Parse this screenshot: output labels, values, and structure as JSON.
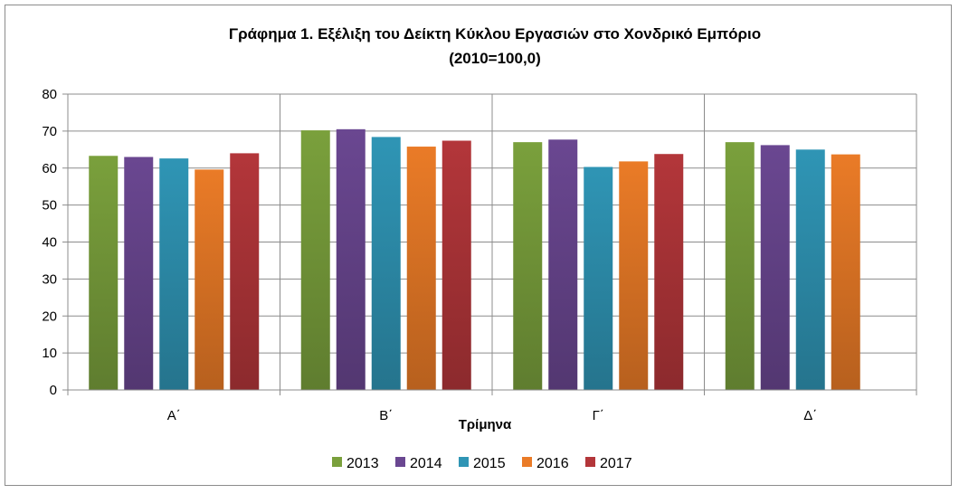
{
  "chart_data": {
    "type": "bar",
    "title": "Γράφημα 1.  Εξέλιξη του Δείκτη Κύκλου Εργασιών στο Χονδρικό Εμπόριο",
    "subtitle": "(2010=100,0)",
    "xlabel": "Τρίμηνα",
    "ylabel": "",
    "ylim": [
      0,
      80
    ],
    "yticks": [
      0,
      10,
      20,
      30,
      40,
      50,
      60,
      70,
      80
    ],
    "grid": true,
    "legend_position": "bottom",
    "categories": [
      "Α΄",
      "Β΄",
      "Γ΄",
      "Δ΄"
    ],
    "series": [
      {
        "name": "2013",
        "color": "#7aa03c",
        "values": [
          63.3,
          70.2,
          67.0,
          67.0
        ]
      },
      {
        "name": "2014",
        "color": "#6a4791",
        "values": [
          63.0,
          70.5,
          67.7,
          66.2
        ]
      },
      {
        "name": "2015",
        "color": "#2f95b5",
        "values": [
          62.6,
          68.4,
          60.3,
          65.0
        ]
      },
      {
        "name": "2016",
        "color": "#ea7b27",
        "values": [
          59.6,
          65.8,
          61.8,
          63.7
        ]
      },
      {
        "name": "2017",
        "color": "#b3363a",
        "values": [
          64.0,
          67.4,
          63.8,
          null
        ]
      }
    ]
  }
}
